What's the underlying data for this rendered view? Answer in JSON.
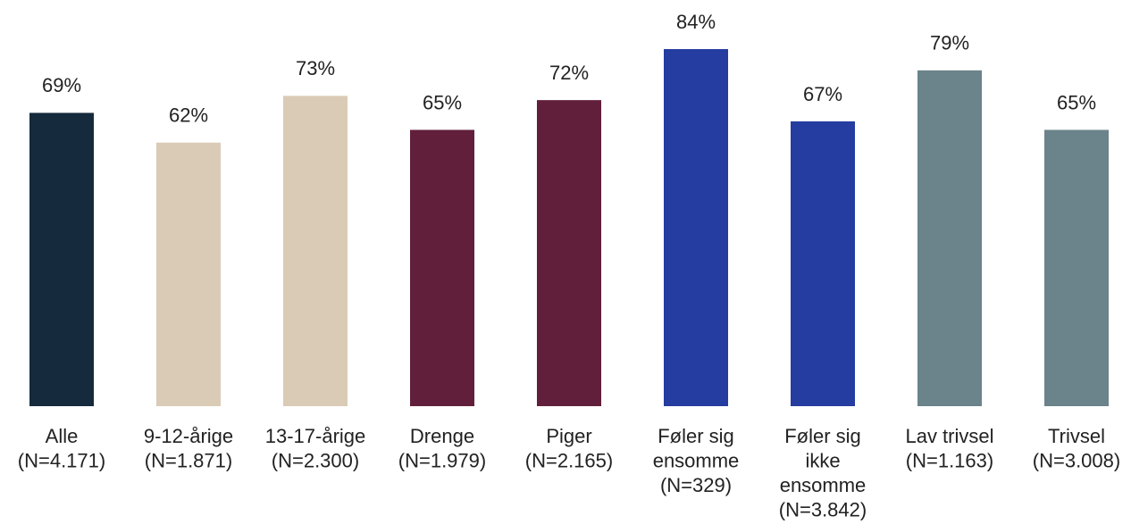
{
  "chart_data": {
    "type": "bar",
    "categories": [
      [
        "Alle",
        "(N=4.171)"
      ],
      [
        "9-12-årige",
        "(N=1.871)"
      ],
      [
        "13-17-årige",
        "(N=2.300)"
      ],
      [
        "Drenge",
        "(N=1.979)"
      ],
      [
        "Piger",
        "(N=2.165)"
      ],
      [
        "Føler sig",
        "ensomme",
        "(N=329)"
      ],
      [
        "Føler sig",
        "ikke",
        "ensomme",
        "(N=3.842)"
      ],
      [
        "Lav trivsel",
        "(N=1.163)"
      ],
      [
        "Trivsel",
        "(N=3.008)"
      ]
    ],
    "values": [
      69,
      62,
      73,
      65,
      72,
      84,
      67,
      79,
      65
    ],
    "value_labels": [
      "69%",
      "62%",
      "73%",
      "65%",
      "72%",
      "84%",
      "67%",
      "79%",
      "65%"
    ],
    "colors": [
      "#152a3c",
      "#d9cbb5",
      "#d9cbb5",
      "#611f3b",
      "#611f3b",
      "#253ca0",
      "#253ca0",
      "#6b838b",
      "#6b838b"
    ]
  }
}
